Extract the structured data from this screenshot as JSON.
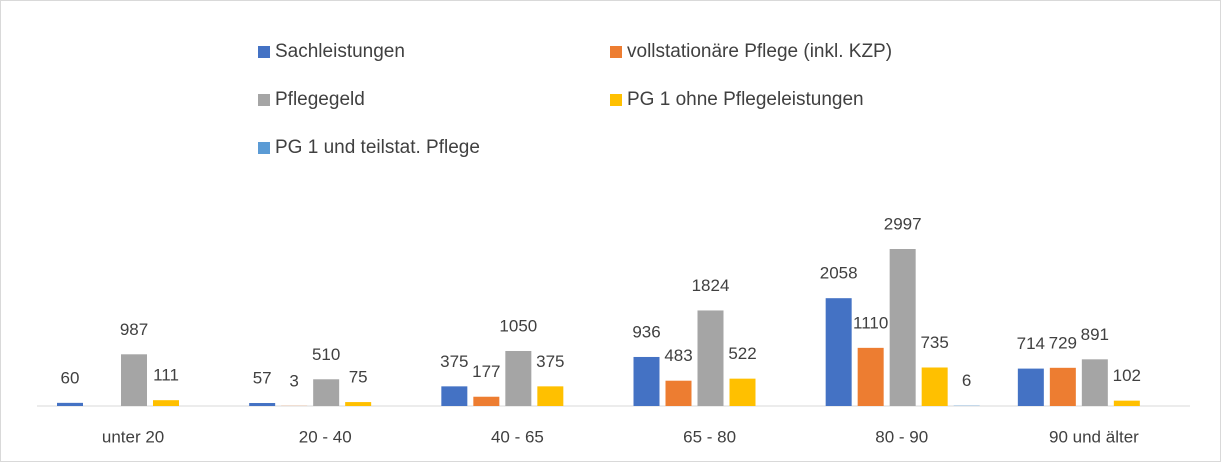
{
  "chart_data": {
    "type": "bar",
    "categories": [
      "unter 20",
      "20 - 40",
      "40 - 65",
      "65 - 80",
      "80 - 90",
      "90 und älter"
    ],
    "series": [
      {
        "name": "Sachleistungen",
        "color": "#4472c4",
        "values": [
          60,
          57,
          375,
          936,
          2058,
          714
        ]
      },
      {
        "name": "vollstationäre Pflege (inkl. KZP)",
        "color": "#ed7d31",
        "values": [
          null,
          3,
          177,
          483,
          1110,
          729
        ]
      },
      {
        "name": "Pflegegeld",
        "color": "#a5a5a5",
        "values": [
          987,
          510,
          1050,
          1824,
          2997,
          891
        ]
      },
      {
        "name": "PG 1 ohne Pflegeleistungen",
        "color": "#ffc000",
        "values": [
          111,
          75,
          375,
          522,
          735,
          102
        ]
      },
      {
        "name": "PG 1 und teilstat. Pflege",
        "color": "#5b9bd5",
        "values": [
          null,
          null,
          null,
          null,
          6,
          null
        ]
      }
    ],
    "legend": "top"
  }
}
